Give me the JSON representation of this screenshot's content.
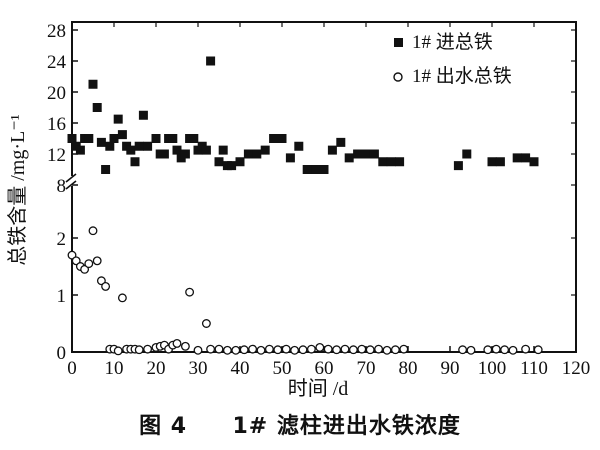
{
  "chart_data": {
    "type": "scatter",
    "xlabel": "时间 /d",
    "ylabel": "总铁含量 /mg·L⁻¹",
    "xlim": [
      0,
      120
    ],
    "x_ticks": [
      0,
      10,
      20,
      30,
      40,
      50,
      60,
      70,
      80,
      90,
      100,
      110,
      120
    ],
    "y_ticks": [
      "0",
      "1",
      "2",
      "8",
      "12",
      "16",
      "20",
      "24",
      "28"
    ],
    "y_scale": "broken axis: 0–2 lower segment, 8–28 upper segment",
    "grid": false,
    "legend_position": "top-right",
    "series": [
      {
        "name": "1# 进总铁",
        "marker": "filled-square",
        "x": [
          0,
          1,
          2,
          3,
          4,
          5,
          6,
          7,
          8,
          9,
          10,
          11,
          12,
          13,
          14,
          15,
          16,
          17,
          18,
          20,
          21,
          22,
          23,
          24,
          25,
          26,
          27,
          28,
          29,
          30,
          31,
          32,
          33,
          35,
          36,
          37,
          38,
          40,
          42,
          44,
          46,
          48,
          50,
          52,
          54,
          56,
          58,
          60,
          62,
          64,
          66,
          68,
          70,
          72,
          74,
          76,
          78,
          92,
          94,
          100,
          102,
          106,
          108,
          110
        ],
        "y": [
          14,
          13,
          12.5,
          14,
          14,
          21,
          18,
          13.5,
          10,
          13,
          14,
          16.5,
          14.5,
          13,
          12.5,
          11,
          13,
          17,
          13,
          14,
          12,
          12,
          14,
          14,
          12.5,
          11.5,
          12,
          14,
          14,
          12.5,
          13,
          12.5,
          24,
          11,
          12.5,
          10.5,
          10.5,
          11,
          12,
          12,
          12.5,
          14,
          14,
          11.5,
          13,
          10,
          10,
          10,
          12.5,
          13.5,
          11.5,
          12,
          12,
          12,
          11,
          11,
          11,
          10.5,
          12,
          11,
          11,
          11.5,
          11.5,
          11
        ]
      },
      {
        "name": "1# 出水总铁",
        "marker": "open-circle",
        "x": [
          0,
          1,
          2,
          3,
          4,
          5,
          6,
          7,
          8,
          9,
          10,
          11,
          12,
          13,
          14,
          15,
          16,
          18,
          20,
          21,
          22,
          23,
          24,
          25,
          27,
          28,
          30,
          32,
          33,
          35,
          37,
          39,
          41,
          43,
          45,
          47,
          49,
          51,
          53,
          55,
          57,
          59,
          61,
          63,
          65,
          67,
          69,
          71,
          73,
          75,
          77,
          79,
          93,
          95,
          99,
          101,
          103,
          105,
          108,
          111
        ],
        "y": [
          1.7,
          1.6,
          1.5,
          1.45,
          1.55,
          2.1,
          1.6,
          1.25,
          1.15,
          0.05,
          0.05,
          0.02,
          0.95,
          0.05,
          0.05,
          0.05,
          0.04,
          0.05,
          0.08,
          0.1,
          0.12,
          0.05,
          0.12,
          0.15,
          0.1,
          1.05,
          0.03,
          0.5,
          0.05,
          0.05,
          0.03,
          0.03,
          0.04,
          0.05,
          0.03,
          0.05,
          0.04,
          0.05,
          0.03,
          0.04,
          0.05,
          0.08,
          0.05,
          0.04,
          0.05,
          0.04,
          0.05,
          0.04,
          0.05,
          0.03,
          0.04,
          0.05,
          0.04,
          0.03,
          0.04,
          0.05,
          0.04,
          0.03,
          0.05,
          0.04
        ]
      }
    ]
  },
  "caption": {
    "figure_number": "图 4",
    "text": "1# 滤柱进出水铁浓度"
  }
}
